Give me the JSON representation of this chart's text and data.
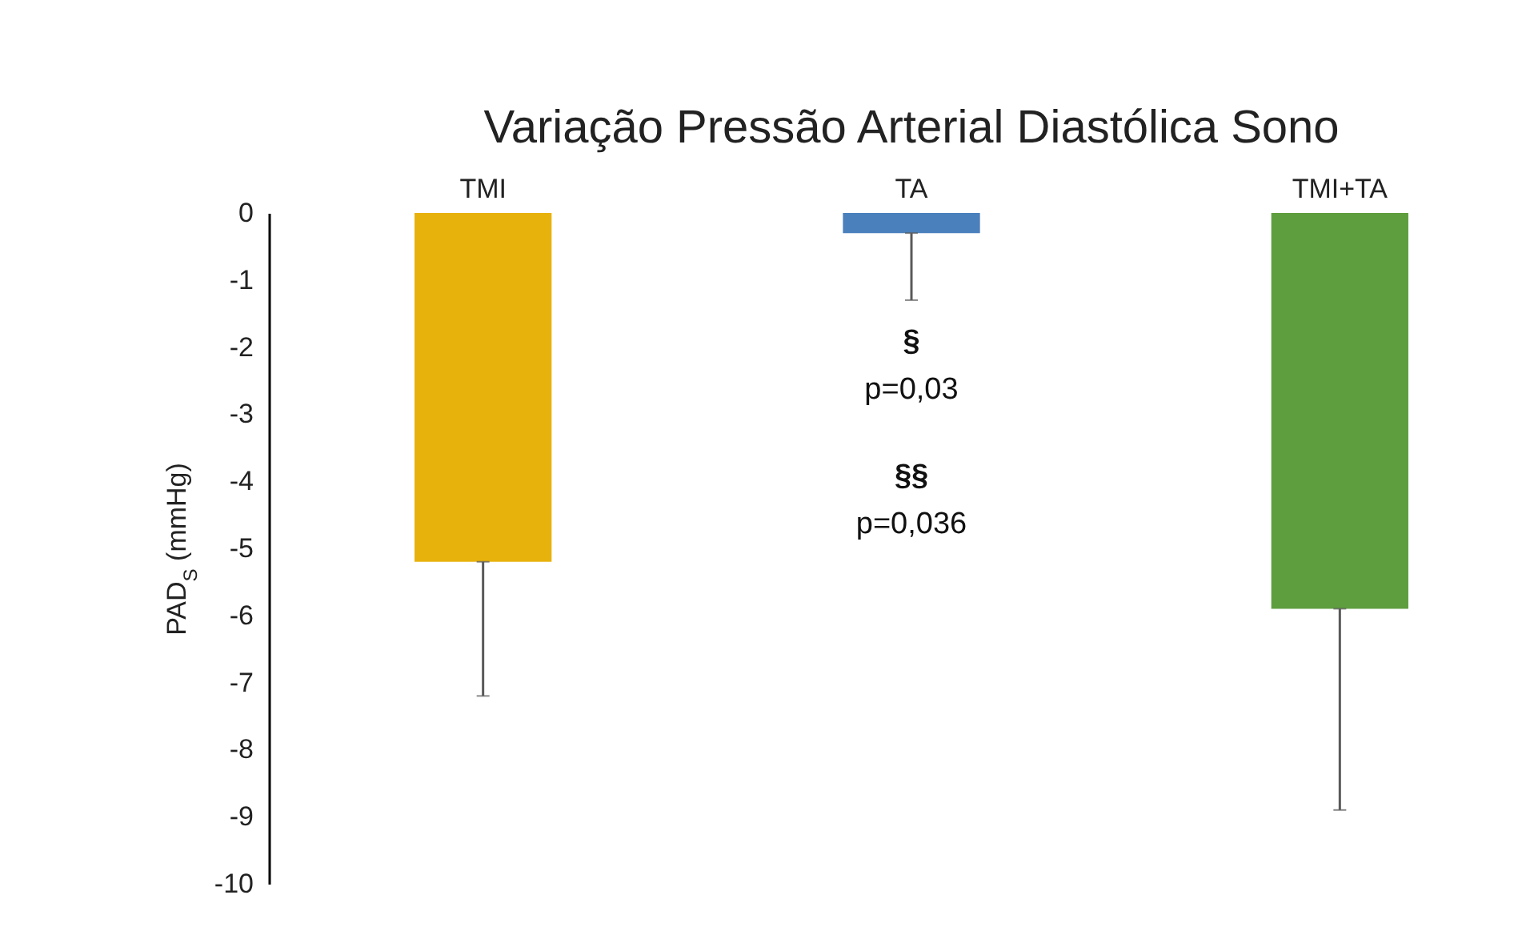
{
  "chart_data": {
    "type": "bar",
    "title": "Variação Pressão Arterial Diastólica Sono",
    "ylabel": "PAD$_{S}$ (mmHg)",
    "categories": [
      "TMI",
      "TA",
      "TMI+TA"
    ],
    "values": [
      -5.2,
      -0.3,
      -5.9
    ],
    "colors": [
      "#e8b20c",
      "#4a80bc",
      "#5f9e3e"
    ],
    "errors": [
      [
        -7.2,
        -5.2
      ],
      [
        -1.3,
        -0.3
      ],
      [
        -8.9,
        -5.9
      ]
    ],
    "ylim": [
      -10,
      0
    ],
    "yticks": [
      0,
      -1,
      -2,
      -3,
      -4,
      -5,
      -6,
      -7,
      -8,
      -9,
      -10
    ],
    "grid": false,
    "annotations": [
      "§",
      "p=0,03",
      "§§",
      "p=0,036"
    ]
  }
}
